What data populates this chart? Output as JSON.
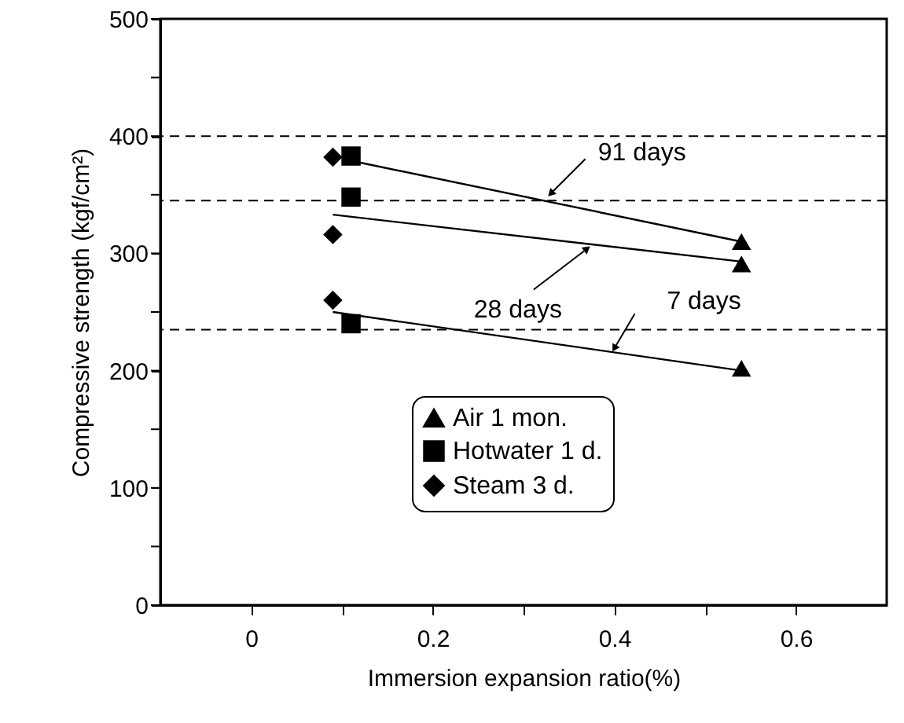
{
  "chart_data": {
    "type": "scatter",
    "xlabel": "Immersion expansion ratio(%)",
    "ylabel": "Compressive strength (kgf/cm²)",
    "xlim": [
      -0.1,
      0.7
    ],
    "xticks": [
      0,
      {
        "value": 0.1,
        "label": null
      },
      0.2,
      {
        "value": 0.3,
        "label": null
      },
      0.4,
      {
        "value": 0.5,
        "label": null
      },
      0.6
    ],
    "ylim": [
      0,
      500
    ],
    "yticks": [
      0,
      {
        "value": 50,
        "label": null
      },
      100,
      {
        "value": 150,
        "label": null
      },
      200,
      {
        "value": 250,
        "label": null
      },
      300,
      {
        "value": 350,
        "label": null
      },
      400,
      {
        "value": 450,
        "label": null
      },
      500
    ],
    "grid": false,
    "legend": "bottom right",
    "series": [
      {
        "name": "Air 1 mon.",
        "type": "scatter",
        "marker": "triangle",
        "color": "#000000",
        "x": [
          0.54,
          0.54,
          0.54
        ],
        "values": [
          310,
          291,
          202
        ]
      },
      {
        "name": "Hotwater 1 d.",
        "type": "scatter",
        "marker": "square",
        "color": "#000000",
        "x": [
          0.11,
          0.11,
          0.11
        ],
        "values": [
          383,
          348,
          240
        ]
      },
      {
        "name": "Steam 3 d.",
        "type": "scatter",
        "marker": "diamond",
        "color": "#000000",
        "x": [
          0.09,
          0.09,
          0.09
        ],
        "values": [
          382,
          316,
          260
        ]
      },
      {
        "type": "line",
        "color": "#000000",
        "x": [
          0.11,
          0.54
        ],
        "values": [
          379,
          310
        ]
      },
      {
        "type": "line",
        "color": "#000000",
        "x": [
          0.09,
          0.54
        ],
        "values": [
          333,
          293
        ]
      },
      {
        "type": "line",
        "color": "#000000",
        "x": [
          0.09,
          0.54
        ],
        "values": [
          250,
          200
        ]
      }
    ],
    "ref_lines": [
      {
        "axis": "y",
        "value": 400,
        "line_style": "dashed",
        "color": "#000000"
      },
      {
        "axis": "y",
        "value": 345,
        "line_style": "dashed",
        "color": "#000000"
      },
      {
        "axis": "y",
        "value": 235,
        "line_style": "dashed",
        "color": "#000000"
      }
    ],
    "annotations": [
      {
        "text": "91 days",
        "x": 0.33,
        "y": 351
      },
      {
        "text": "28 days",
        "x": 0.37,
        "y": 304
      },
      {
        "text": "7 days",
        "x": 0.4,
        "y": 219
      }
    ]
  }
}
